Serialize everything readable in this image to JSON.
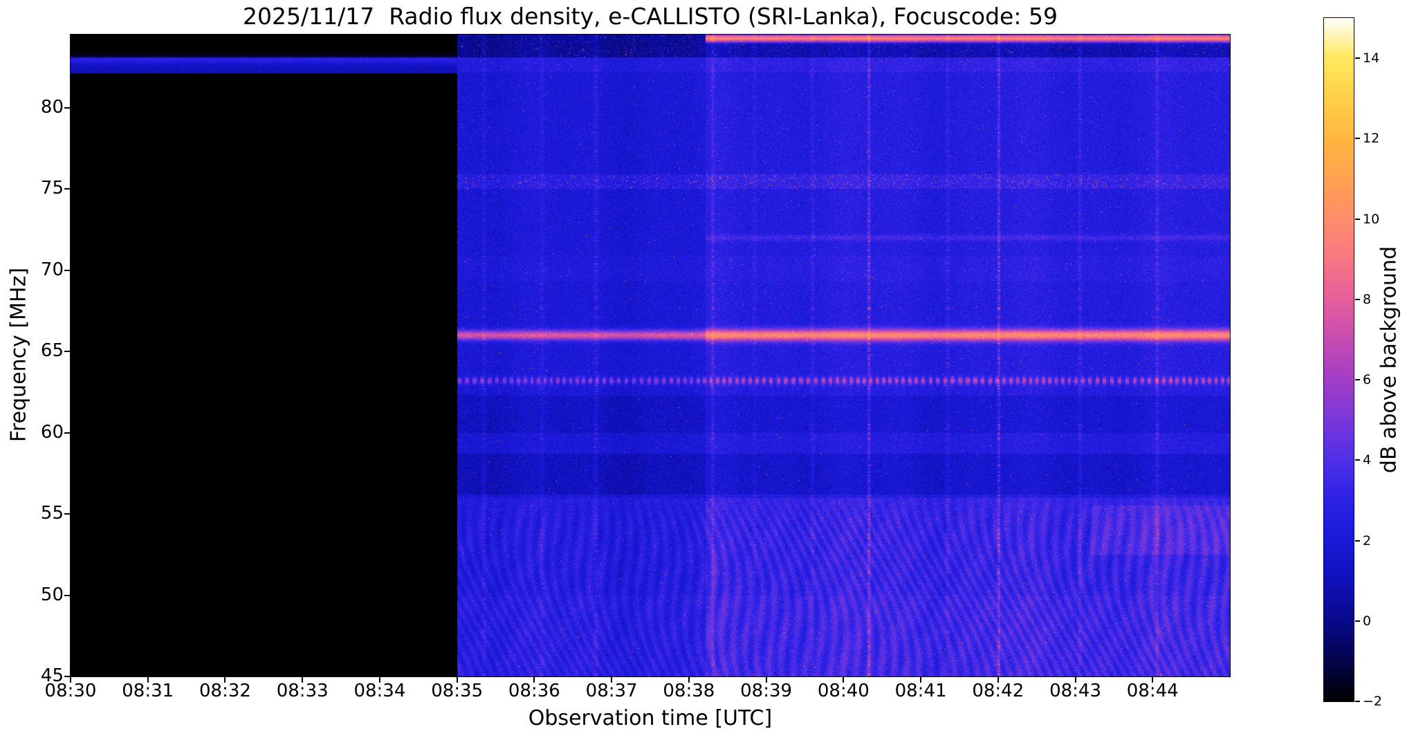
{
  "title": "2025/11/17  Radio flux density, e-CALLISTO (SRI-Lanka), Focuscode: 59",
  "chart_data": {
    "type": "heatmap",
    "title": "2025/11/17  Radio flux density, e-CALLISTO (SRI-Lanka), Focuscode: 59",
    "xlabel": "Observation time [UTC]",
    "ylabel": "Frequency [MHz]",
    "x_start_time": "08:30",
    "x_end_time": "08:45",
    "x_range_minutes": [
      0,
      15
    ],
    "x_ticks": [
      {
        "m": 0,
        "label": "08:30"
      },
      {
        "m": 1,
        "label": "08:31"
      },
      {
        "m": 2,
        "label": "08:32"
      },
      {
        "m": 3,
        "label": "08:33"
      },
      {
        "m": 4,
        "label": "08:34"
      },
      {
        "m": 5,
        "label": "08:35"
      },
      {
        "m": 6,
        "label": "08:36"
      },
      {
        "m": 7,
        "label": "08:37"
      },
      {
        "m": 8,
        "label": "08:38"
      },
      {
        "m": 9,
        "label": "08:39"
      },
      {
        "m": 10,
        "label": "08:40"
      },
      {
        "m": 11,
        "label": "08:41"
      },
      {
        "m": 12,
        "label": "08:42"
      },
      {
        "m": 13,
        "label": "08:43"
      },
      {
        "m": 14,
        "label": "08:44"
      }
    ],
    "y_range_mhz": [
      45,
      84.5
    ],
    "y_ticks": [
      {
        "f": 45,
        "label": "45"
      },
      {
        "f": 50,
        "label": "50"
      },
      {
        "f": 55,
        "label": "55"
      },
      {
        "f": 60,
        "label": "60"
      },
      {
        "f": 65,
        "label": "65"
      },
      {
        "f": 70,
        "label": "70"
      },
      {
        "f": 75,
        "label": "75"
      },
      {
        "f": 80,
        "label": "80"
      }
    ],
    "colorbar": {
      "label": "dB above background",
      "range_db": [
        -2,
        15
      ],
      "ticks": [
        {
          "v": -2,
          "label": "−2"
        },
        {
          "v": 0,
          "label": "0"
        },
        {
          "v": 2,
          "label": "2"
        },
        {
          "v": 4,
          "label": "4"
        },
        {
          "v": 6,
          "label": "6"
        },
        {
          "v": 8,
          "label": "8"
        },
        {
          "v": 10,
          "label": "10"
        },
        {
          "v": 12,
          "label": "12"
        },
        {
          "v": 14,
          "label": "14"
        }
      ],
      "colormap_stops": [
        {
          "v": -2,
          "c": "#000000"
        },
        {
          "v": -1,
          "c": "#05054d"
        },
        {
          "v": 0,
          "c": "#0a0a8c"
        },
        {
          "v": 1,
          "c": "#1111bb"
        },
        {
          "v": 2,
          "c": "#1a1ad9"
        },
        {
          "v": 3,
          "c": "#2d21e6"
        },
        {
          "v": 4,
          "c": "#5030e8"
        },
        {
          "v": 5,
          "c": "#7a38da"
        },
        {
          "v": 6,
          "c": "#a23fc6"
        },
        {
          "v": 7,
          "c": "#c74db2"
        },
        {
          "v": 8,
          "c": "#e65f9c"
        },
        {
          "v": 9,
          "c": "#f87784"
        },
        {
          "v": 10,
          "c": "#ff8e6b"
        },
        {
          "v": 11,
          "c": "#ffa251"
        },
        {
          "v": 12,
          "c": "#ffb83e"
        },
        {
          "v": 13,
          "c": "#ffd04b"
        },
        {
          "v": 14,
          "c": "#ffe95e"
        },
        {
          "v": 15,
          "c": "#ffffff"
        }
      ]
    },
    "segments": [
      {
        "name": "no-data-black",
        "t0": 0,
        "t1": 5.0,
        "base_db": -2,
        "noise": 0.04,
        "speckle": 0,
        "wave": 0
      },
      {
        "name": "observation-dim",
        "t0": 5.0,
        "t1": 8.22,
        "base_db": 2.0,
        "noise": 0.85,
        "speckle": 0.0015,
        "wave": 0.5
      },
      {
        "name": "observation-bright",
        "t0": 8.22,
        "t1": 15,
        "base_db": 2.55,
        "noise": 0.85,
        "speckle": 0.0015,
        "wave": 0.62
      }
    ],
    "bands": [
      {
        "name": "cal-band-left",
        "f0": 82.1,
        "f1": 83.1,
        "t0": 0,
        "t1": 5.0,
        "delta": 3.1,
        "noise": 0.5,
        "speckle": 0
      },
      {
        "name": "dark-top-band-mid",
        "f0": 83.1,
        "f1": 84.5,
        "t0": 5.0,
        "t1": 8.22,
        "delta": -1.7,
        "noise": 0,
        "speckle": 0.02
      },
      {
        "name": "dark-top-band-right",
        "f0": 83.1,
        "f1": 84.0,
        "t0": 8.22,
        "t1": 15,
        "delta": -1.6,
        "noise": 0,
        "speckle": 0.01
      },
      {
        "name": "bright-82mhz-band",
        "f0": 82.2,
        "f1": 83.1,
        "t0": 5.0,
        "t1": 15,
        "delta": 0.5,
        "noise": 0,
        "speckle": 0
      },
      {
        "name": "speckle-band-75mhz",
        "f0": 75.0,
        "f1": 75.9,
        "t0": 5.0,
        "t1": 15,
        "delta": 0.7,
        "noise": 0,
        "speckle": 0.03
      },
      {
        "name": "faint-band-70mhz",
        "f0": 69.3,
        "f1": 70.9,
        "t0": 5.0,
        "t1": 15,
        "delta": 0.25,
        "noise": 0,
        "speckle": 0
      },
      {
        "name": "dark-band-61mhz",
        "f0": 60.0,
        "f1": 62.3,
        "t0": 5.0,
        "t1": 15,
        "delta": -0.65,
        "noise": 0,
        "speckle": 0
      },
      {
        "name": "dark-band-57mhz",
        "f0": 56.2,
        "f1": 58.7,
        "t0": 5.0,
        "t1": 15,
        "delta": -0.85,
        "noise": 0,
        "speckle": 0
      },
      {
        "name": "low-freq-bright-mid",
        "f0": 45.0,
        "f1": 56.0,
        "t0": 5.0,
        "t1": 8.22,
        "delta": 0.5,
        "noise": 0,
        "speckle": 0
      },
      {
        "name": "low-freq-bright-right",
        "f0": 45.0,
        "f1": 56.0,
        "t0": 8.22,
        "t1": 15,
        "delta": 0.75,
        "noise": 0,
        "speckle": 0
      },
      {
        "name": "magenta-patch-54mhz",
        "f0": 52.5,
        "f1": 55.5,
        "t0": 13.2,
        "t1": 15,
        "delta": 0.7,
        "noise": 0,
        "speckle": 0
      },
      {
        "name": "bottom-extra",
        "f0": 45.0,
        "f1": 50.0,
        "t0": 5.0,
        "t1": 15,
        "delta": 0.25,
        "noise": 0,
        "speckle": 0
      }
    ],
    "hlines": [
      {
        "name": "cal-line-83mhz",
        "f": 82.95,
        "t0": 0,
        "t1": 5.0,
        "amp": 1.6,
        "w": 0.18,
        "dash": 0
      },
      {
        "name": "carrier-66mhz-dim",
        "f": 66.0,
        "t0": 5.0,
        "t1": 8.22,
        "amp": 5.6,
        "w": 0.22,
        "dash": 0
      },
      {
        "name": "carrier-66mhz-bright",
        "f": 66.0,
        "t0": 8.22,
        "t1": 15,
        "amp": 7.2,
        "w": 0.26,
        "dash": 0
      },
      {
        "name": "dashed-63mhz-dim",
        "f": 63.2,
        "t0": 5.0,
        "t1": 8.22,
        "amp": 3.4,
        "w": 0.16,
        "dash": 70
      },
      {
        "name": "dashed-63mhz-bright",
        "f": 63.2,
        "t0": 8.22,
        "t1": 15,
        "amp": 4.0,
        "w": 0.16,
        "dash": 70
      },
      {
        "name": "top-line-84mhz",
        "f": 84.27,
        "t0": 8.22,
        "t1": 15,
        "amp": 7.0,
        "w": 0.16,
        "dash": 0
      },
      {
        "name": "faint-line-72mhz",
        "f": 72.0,
        "t0": 8.22,
        "t1": 15,
        "amp": 1.1,
        "w": 0.13,
        "dash": 0
      }
    ],
    "vstreaks": [
      {
        "t": 5.35,
        "amp": 0.6,
        "w": 0.02
      },
      {
        "t": 6.1,
        "amp": 0.5,
        "w": 0.02
      },
      {
        "t": 6.8,
        "amp": 0.7,
        "w": 0.02
      },
      {
        "t": 8.31,
        "amp": 0.9,
        "w": 0.015
      },
      {
        "t": 8.85,
        "amp": 0.5,
        "w": 0.02
      },
      {
        "t": 9.6,
        "amp": 0.6,
        "w": 0.02
      },
      {
        "t": 10.33,
        "amp": 1.7,
        "w": 0.012
      },
      {
        "t": 11.35,
        "amp": 0.6,
        "w": 0.02
      },
      {
        "t": 12.01,
        "amp": 1.8,
        "w": 0.012
      },
      {
        "t": 13.06,
        "amp": 0.8,
        "w": 0.015
      },
      {
        "t": 14.06,
        "amp": 0.9,
        "w": 0.015
      }
    ],
    "waves": {
      "f_max_mhz": 56.5
    }
  }
}
